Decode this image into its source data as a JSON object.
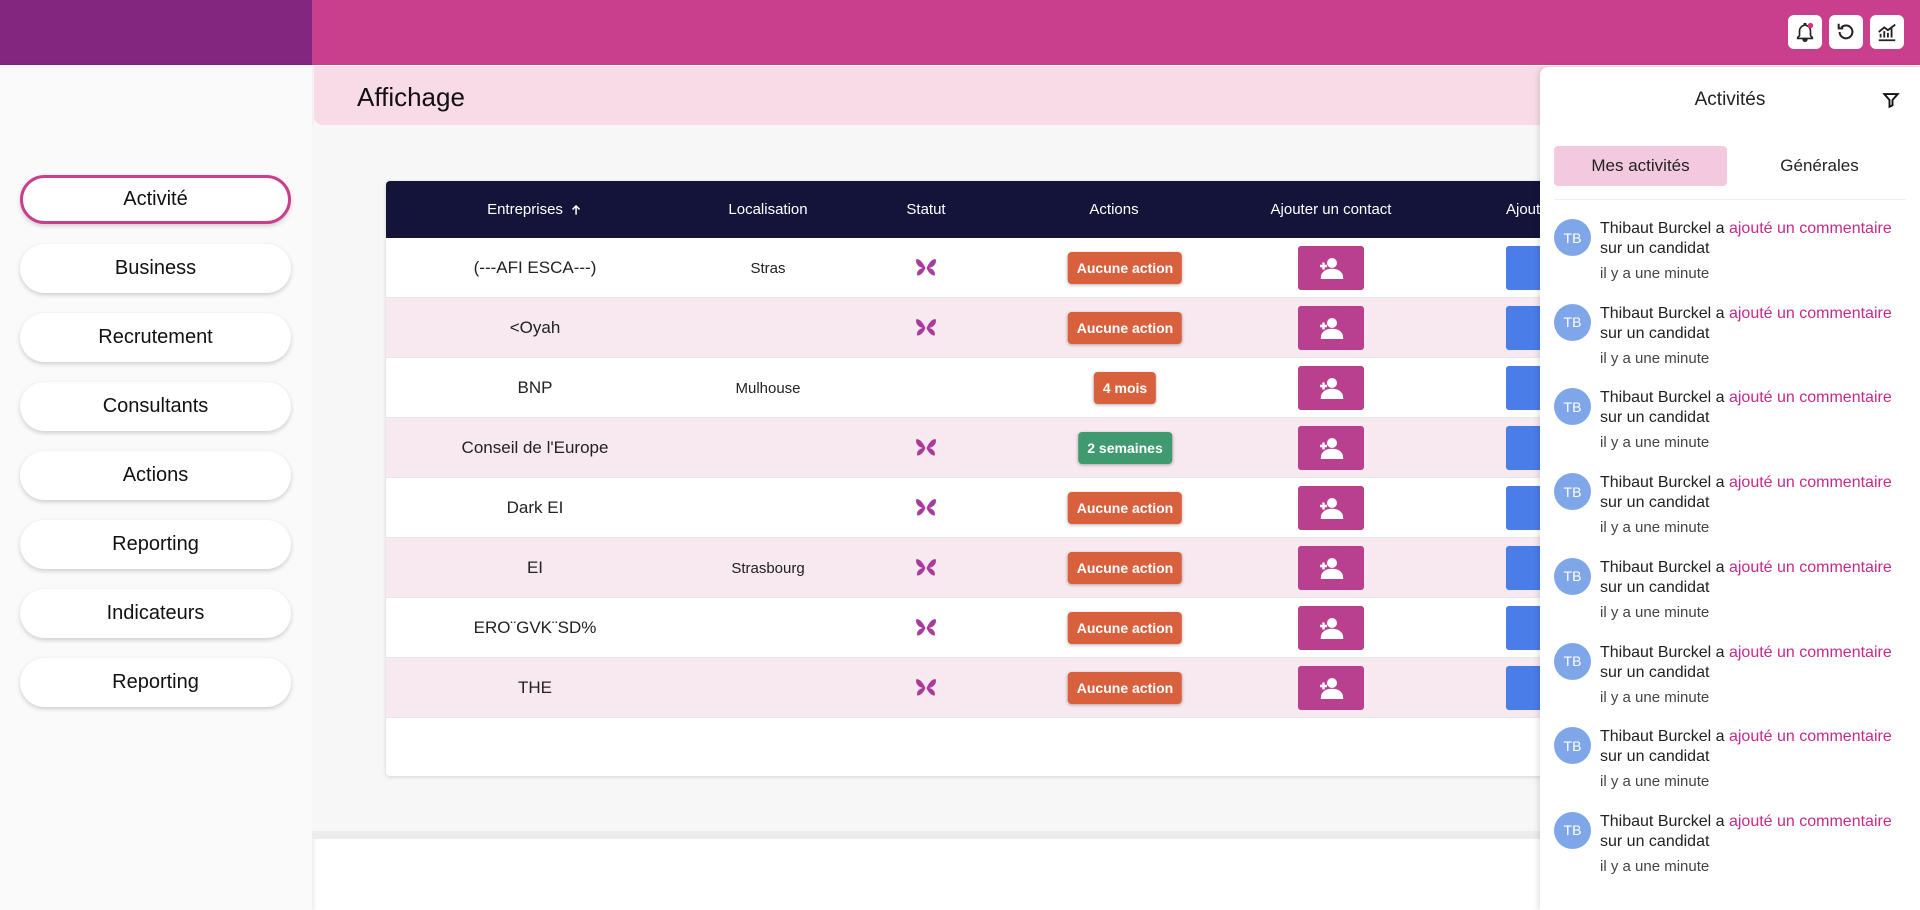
{
  "top_bar": {
    "buttons": [
      "notifications",
      "refresh",
      "stats"
    ]
  },
  "header": {
    "title": "Affichage"
  },
  "sidebar": {
    "items": [
      "Activité",
      "Business",
      "Recrutement",
      "Consultants",
      "Actions",
      "Reporting",
      "Indicateurs",
      "Reporting"
    ]
  },
  "table": {
    "columns": [
      "Entreprises",
      "Localisation",
      "Statut",
      "Actions",
      "Ajouter un contact",
      "Ajouter u"
    ],
    "rows": [
      [
        "(---AFI ESCA---)",
        "Stras",
        "Aucune action"
      ],
      [
        "<Oyah",
        "",
        "Aucune action"
      ],
      [
        "BNP",
        "Mulhouse",
        "4 mois"
      ],
      [
        "Conseil de l'Europe",
        "",
        "2 semaines"
      ],
      [
        "Dark EI",
        "",
        "Aucune action"
      ],
      [
        "EI",
        "Strasbourg",
        "Aucune action"
      ],
      [
        "ERO¨GVK¨SD%",
        "",
        "Aucune action"
      ],
      [
        "THE",
        "",
        "Aucune action"
      ]
    ]
  },
  "panel": {
    "title": "Activités",
    "tabs": [
      "Mes activités",
      "Générales"
    ],
    "items": [
      {
        "avatar": "TB",
        "actor": "Thibaut Burckel a",
        "link": "ajouté un commentaire",
        "rest": "sur un candidat",
        "time": "il y a une minute"
      },
      {
        "avatar": "TB",
        "actor": "Thibaut Burckel a",
        "link": "ajouté un commentaire",
        "rest": "sur un candidat",
        "time": "il y a une minute"
      },
      {
        "avatar": "TB",
        "actor": "Thibaut Burckel a",
        "link": "ajouté un commentaire",
        "rest": "sur un candidat",
        "time": "il y a une minute"
      },
      {
        "avatar": "TB",
        "actor": "Thibaut Burckel a",
        "link": "ajouté un commentaire",
        "rest": "sur un candidat",
        "time": "il y a une minute"
      },
      {
        "avatar": "TB",
        "actor": "Thibaut Burckel a",
        "link": "ajouté un commentaire",
        "rest": "sur un candidat",
        "time": "il y a une minute"
      },
      {
        "avatar": "TB",
        "actor": "Thibaut Burckel a",
        "link": "ajouté un commentaire",
        "rest": "sur un candidat",
        "time": "il y a une minute"
      },
      {
        "avatar": "TB",
        "actor": "Thibaut Burckel a",
        "link": "ajouté un commentaire",
        "rest": "sur un candidat",
        "time": "il y a une minute"
      },
      {
        "avatar": "TB",
        "actor": "Thibaut Burckel a",
        "link": "ajouté un commentaire",
        "rest": "sur un candidat",
        "time": "il y a une minute"
      }
    ]
  }
}
